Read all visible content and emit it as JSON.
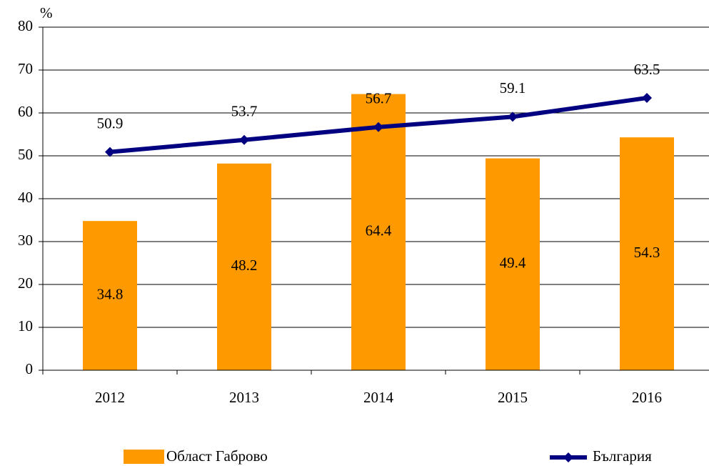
{
  "chart_data": {
    "type": "bar",
    "y_label": "%",
    "categories": [
      "2012",
      "2013",
      "2014",
      "2015",
      "2016"
    ],
    "series": [
      {
        "name": "Област Габрово",
        "type": "bar",
        "color": "#ff9900",
        "values": [
          34.8,
          48.2,
          64.4,
          49.4,
          54.3
        ]
      },
      {
        "name": "България",
        "type": "line",
        "color": "#000080",
        "values": [
          50.9,
          53.7,
          56.7,
          59.1,
          63.5
        ]
      }
    ],
    "ylim": [
      0,
      80
    ],
    "yticks": [
      0,
      10,
      20,
      30,
      40,
      50,
      60,
      70,
      80
    ],
    "grid": true
  }
}
